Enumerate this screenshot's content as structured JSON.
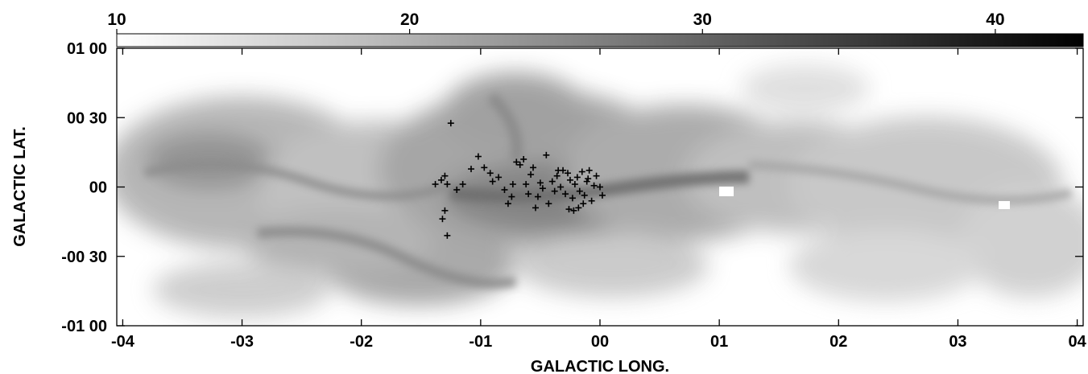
{
  "chart_data": {
    "type": "heatmap",
    "xlabel": "GALACTIC LONG.",
    "ylabel": "GALACTIC LAT.",
    "xlim": [
      -4.05,
      4.05
    ],
    "ylim": [
      -1.0,
      1.0
    ],
    "x_ticks": [
      {
        "value": -4,
        "label": "-04"
      },
      {
        "value": -3,
        "label": "-03"
      },
      {
        "value": -2,
        "label": "-02"
      },
      {
        "value": -1,
        "label": "-01"
      },
      {
        "value": 0,
        "label": "00"
      },
      {
        "value": 1,
        "label": "01"
      },
      {
        "value": 2,
        "label": "02"
      },
      {
        "value": 3,
        "label": "03"
      },
      {
        "value": 4,
        "label": "04"
      }
    ],
    "y_ticks": [
      {
        "value": 1.0,
        "label": "01 00"
      },
      {
        "value": 0.5,
        "label": "00 30"
      },
      {
        "value": 0.0,
        "label": "00"
      },
      {
        "value": -0.5,
        "label": "-00 30"
      },
      {
        "value": -1.0,
        "label": "-01 00"
      }
    ],
    "colorbar": {
      "range": [
        10,
        43
      ],
      "ticks": [
        {
          "value": 10,
          "label": "10"
        },
        {
          "value": 20,
          "label": "20"
        },
        {
          "value": 30,
          "label": "30"
        },
        {
          "value": 40,
          "label": "40"
        }
      ],
      "colormap": "gray_reversed"
    },
    "markers": {
      "symbol": "+",
      "points": [
        [
          -1.25,
          0.46
        ],
        [
          -1.32,
          -0.23
        ],
        [
          -1.28,
          -0.35
        ],
        [
          -1.3,
          -0.17
        ],
        [
          -1.38,
          0.02
        ],
        [
          -1.33,
          0.05
        ],
        [
          -1.3,
          0.08
        ],
        [
          -1.28,
          0.02
        ],
        [
          -1.2,
          -0.02
        ],
        [
          -1.15,
          0.02
        ],
        [
          -1.08,
          0.13
        ],
        [
          -1.02,
          0.22
        ],
        [
          -0.97,
          0.14
        ],
        [
          -0.92,
          0.1
        ],
        [
          -0.9,
          0.04
        ],
        [
          -0.85,
          0.07
        ],
        [
          -0.8,
          -0.02
        ],
        [
          -0.77,
          -0.12
        ],
        [
          -0.74,
          -0.07
        ],
        [
          -0.73,
          0.02
        ],
        [
          -0.7,
          0.18
        ],
        [
          -0.67,
          0.16
        ],
        [
          -0.64,
          0.2
        ],
        [
          -0.62,
          0.02
        ],
        [
          -0.6,
          -0.05
        ],
        [
          -0.58,
          0.09
        ],
        [
          -0.56,
          0.14
        ],
        [
          -0.54,
          -0.15
        ],
        [
          -0.52,
          -0.07
        ],
        [
          -0.5,
          0.03
        ],
        [
          -0.48,
          -0.01
        ],
        [
          -0.45,
          0.23
        ],
        [
          -0.43,
          -0.12
        ],
        [
          -0.4,
          0.04
        ],
        [
          -0.38,
          -0.03
        ],
        [
          -0.36,
          0.08
        ],
        [
          -0.33,
          0.0
        ],
        [
          -0.31,
          0.12
        ],
        [
          -0.29,
          -0.05
        ],
        [
          -0.27,
          0.1
        ],
        [
          -0.25,
          0.05
        ],
        [
          -0.23,
          -0.08
        ],
        [
          -0.21,
          0.02
        ],
        [
          -0.19,
          0.07
        ],
        [
          -0.17,
          -0.03
        ],
        [
          -0.15,
          0.11
        ],
        [
          -0.13,
          -0.06
        ],
        [
          -0.11,
          0.04
        ],
        [
          -0.09,
          0.12
        ],
        [
          -0.07,
          -0.1
        ],
        [
          -0.05,
          0.01
        ],
        [
          -0.03,
          0.08
        ],
        [
          -0.26,
          -0.16
        ],
        [
          -0.22,
          -0.17
        ],
        [
          -0.18,
          -0.15
        ],
        [
          -0.14,
          -0.12
        ],
        [
          0.0,
          0.0
        ],
        [
          0.02,
          -0.06
        ],
        [
          -0.1,
          0.06
        ],
        [
          -0.35,
          0.12
        ]
      ]
    },
    "grid": false
  }
}
